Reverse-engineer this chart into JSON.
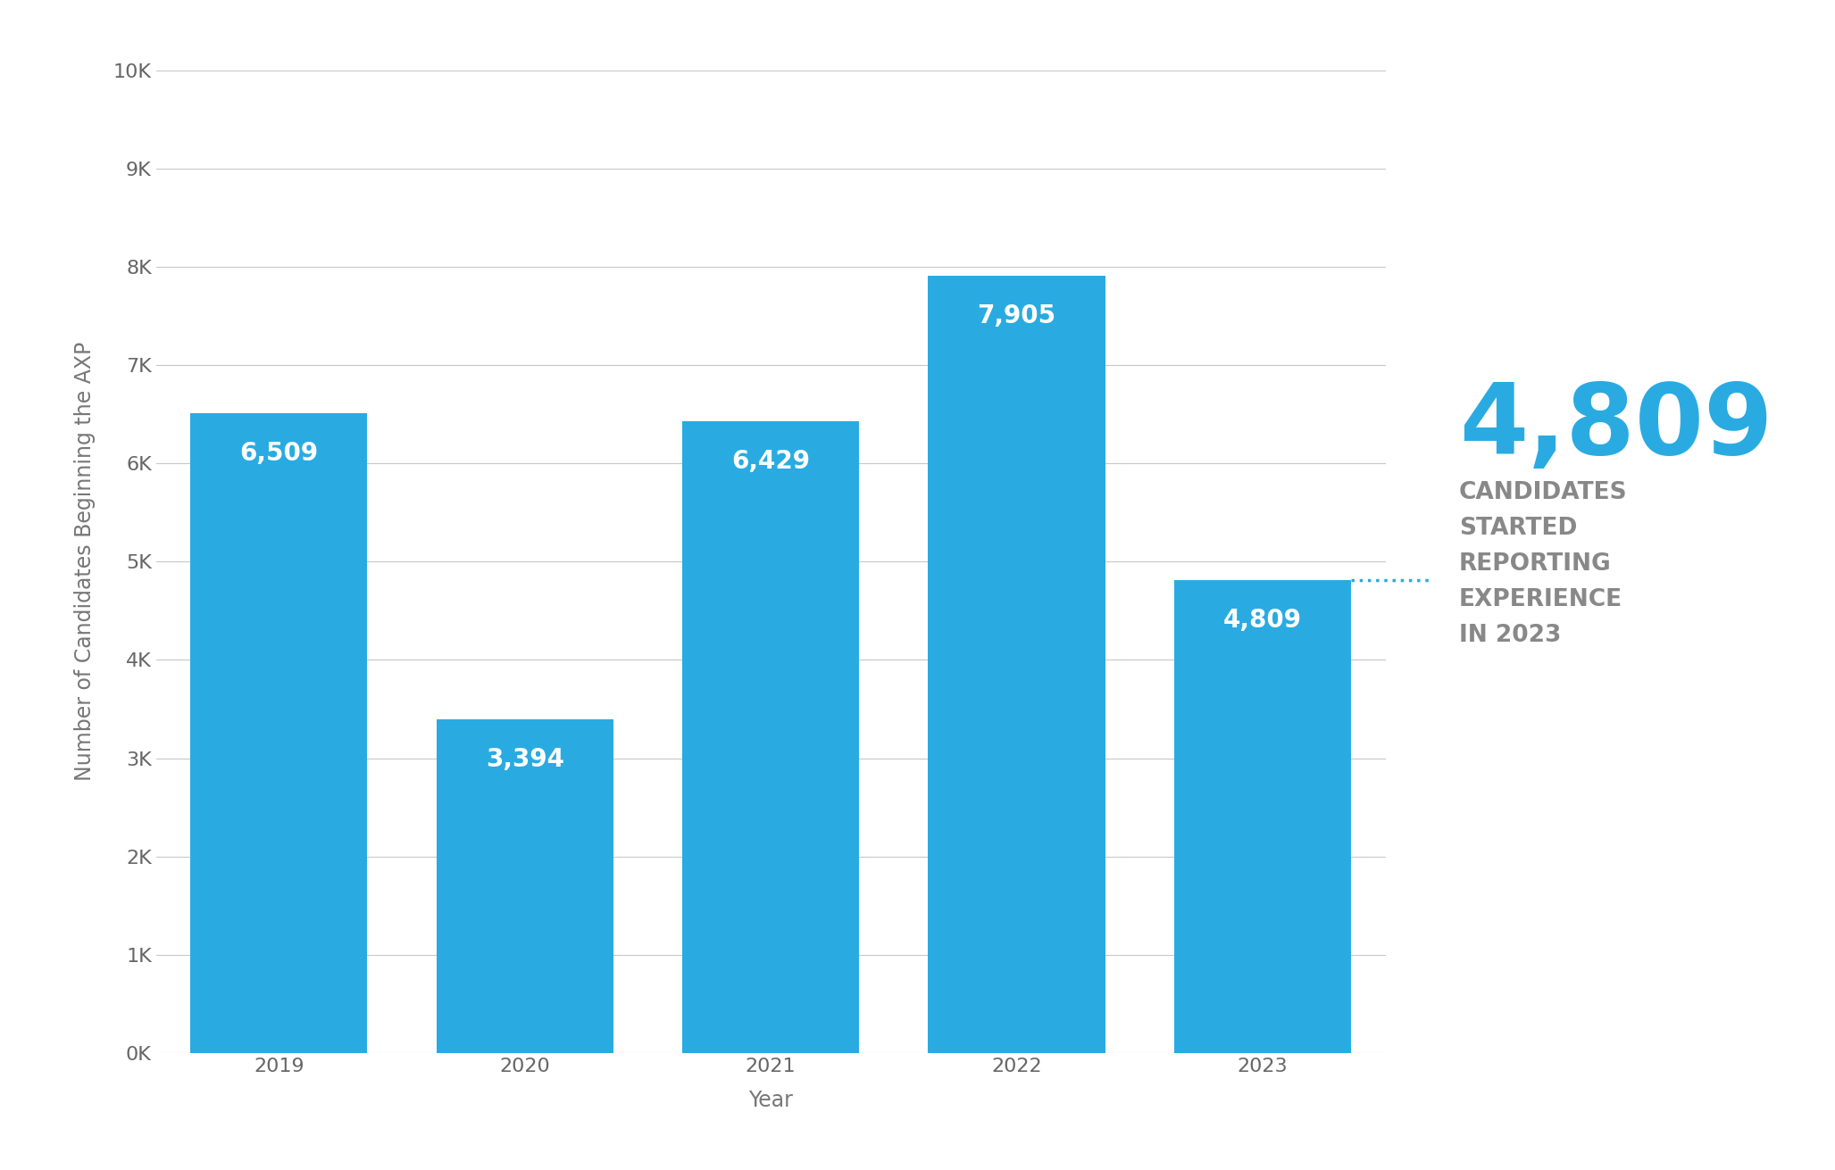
{
  "years": [
    "2019",
    "2020",
    "2021",
    "2022",
    "2023"
  ],
  "values": [
    6509,
    3394,
    6429,
    7905,
    4809
  ],
  "bar_color": "#29ABE2",
  "bar_label_color": "#FFFFFF",
  "background_color": "#FFFFFF",
  "ylabel": "Number of Candidates Beginning the AXP",
  "xlabel": "Year",
  "ylim": [
    0,
    10000
  ],
  "yticks": [
    0,
    1000,
    2000,
    3000,
    4000,
    5000,
    6000,
    7000,
    8000,
    9000,
    10000
  ],
  "ytick_labels": [
    "0K",
    "1K",
    "2K",
    "3K",
    "4K",
    "5K",
    "6K",
    "7K",
    "8K",
    "9K",
    "10K"
  ],
  "grid_color": "#C8C8C8",
  "annotation_value": "4,809",
  "annotation_line1": "CANDIDATES",
  "annotation_line2": "STARTED",
  "annotation_line3": "REPORTING",
  "annotation_line4": "EXPERIENCE",
  "annotation_line5": "IN 2023",
  "annotation_big_color": "#29ABE2",
  "annotation_text_color": "#888888",
  "dotted_line_color": "#29ABE2",
  "bar_label_fontsize": 20,
  "axis_label_fontsize": 17,
  "tick_label_fontsize": 16,
  "annotation_big_fontsize": 80,
  "annotation_small_fontsize": 19
}
